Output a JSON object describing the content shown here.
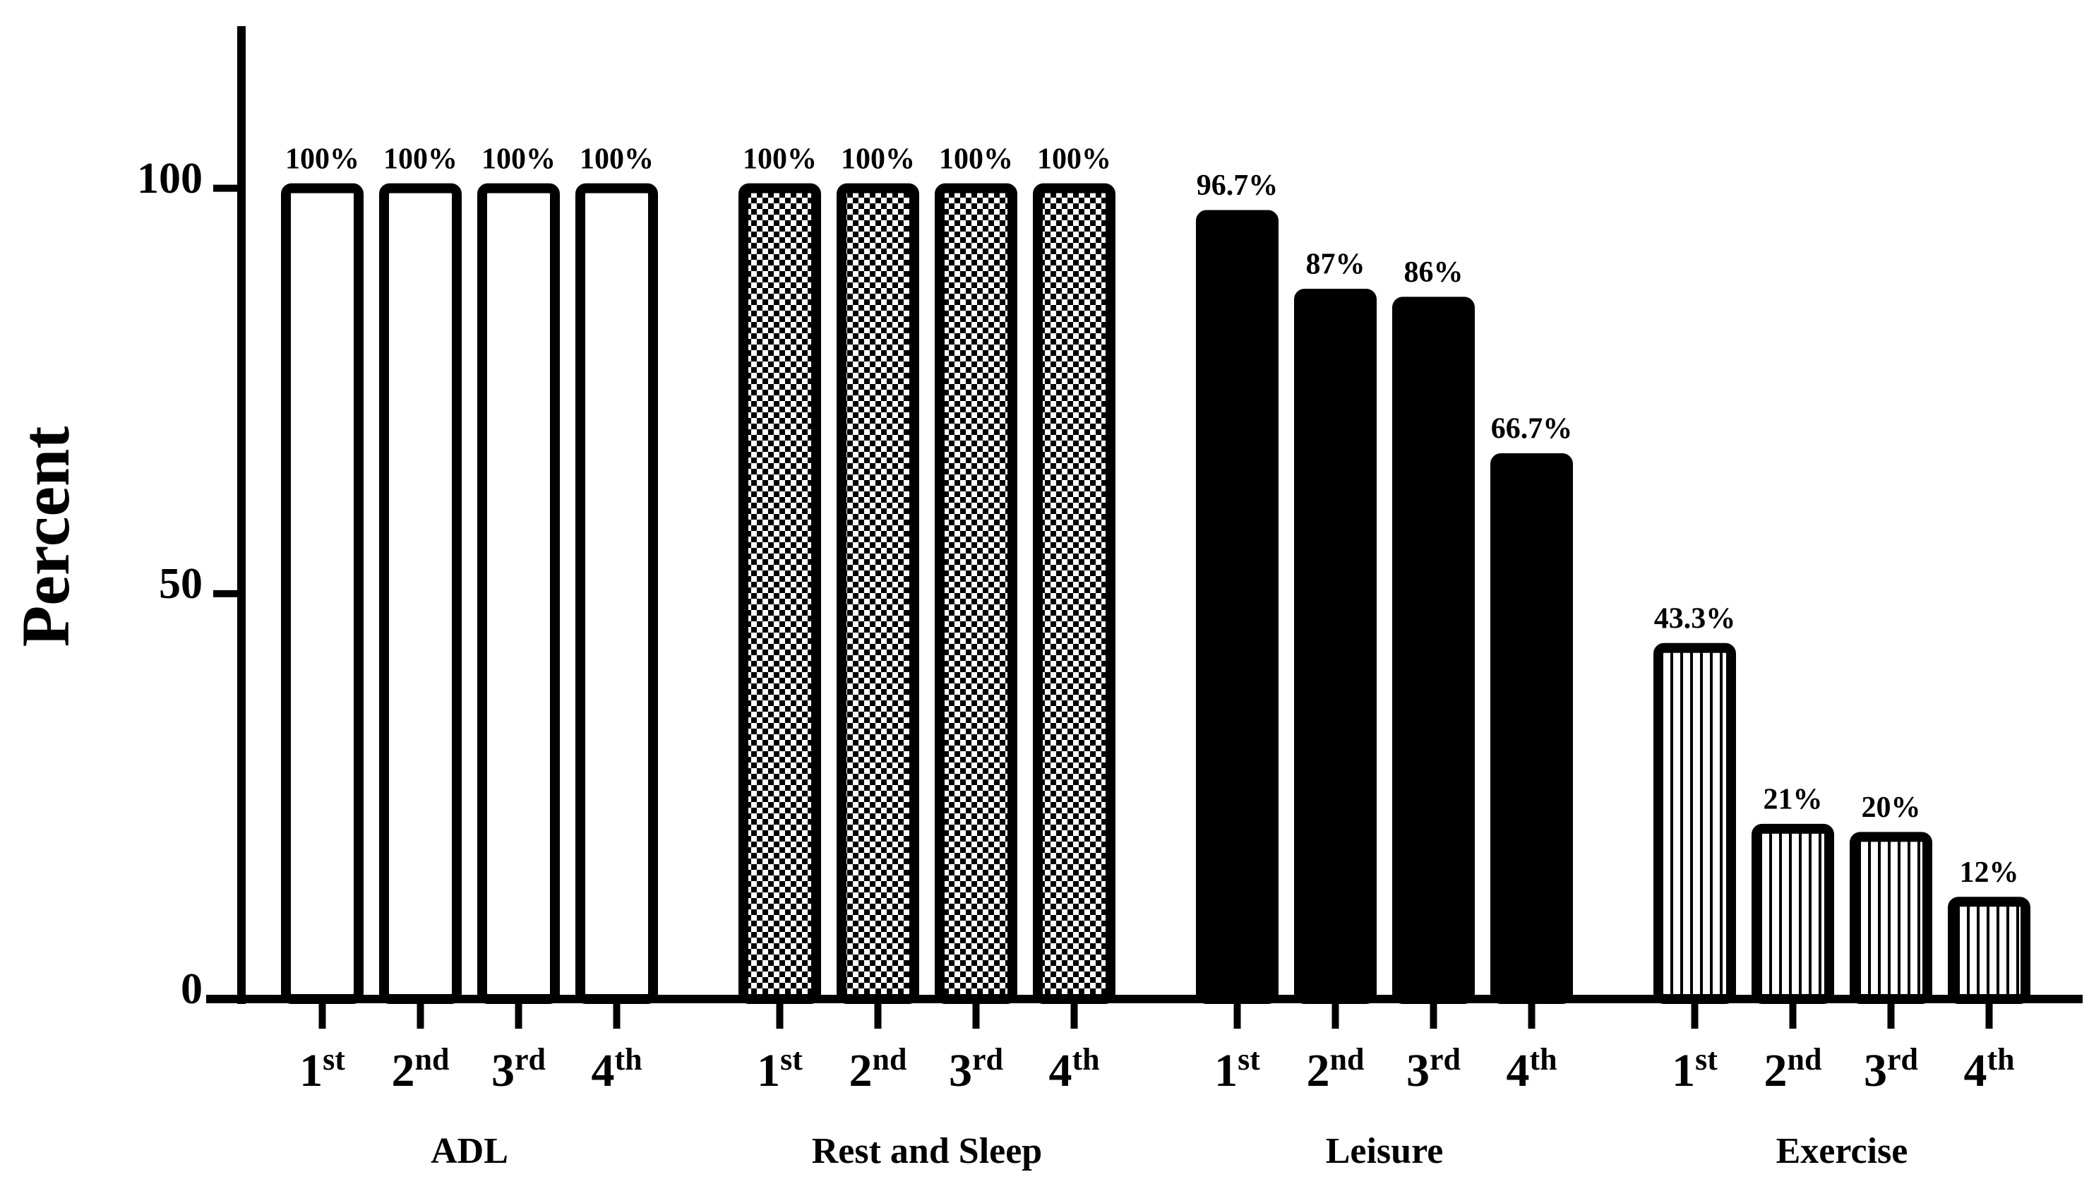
{
  "chart_data": {
    "type": "bar",
    "y_label": "Percent",
    "subcategories": [
      "1st",
      "2nd",
      "3rd",
      "4th"
    ],
    "series": [
      {
        "name": "ADL",
        "fill": "white",
        "values": [
          100,
          100,
          100,
          100
        ],
        "value_labels": [
          "100%",
          "100%",
          "100%",
          "100%"
        ]
      },
      {
        "name": "Rest and Sleep",
        "fill": "checker",
        "values": [
          100,
          100,
          100,
          100
        ],
        "value_labels": [
          "100%",
          "100%",
          "100%",
          "100%"
        ]
      },
      {
        "name": "Leisure",
        "fill": "black",
        "values": [
          96.7,
          87,
          86,
          66.7
        ],
        "value_labels": [
          "96.7%",
          "87%",
          "86%",
          "66.7%"
        ]
      },
      {
        "name": "Exercise",
        "fill": "stripes",
        "values": [
          43.3,
          21,
          20,
          12
        ],
        "value_labels": [
          "43.3%",
          "21%",
          "20%",
          "12%"
        ]
      }
    ],
    "ylim": [
      0,
      120
    ],
    "yticks": [
      0,
      50,
      100
    ]
  }
}
